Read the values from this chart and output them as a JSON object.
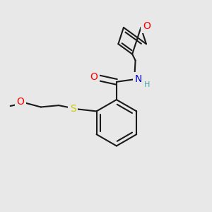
{
  "background_color": "#e8e8e8",
  "bond_color": "#1a1a1a",
  "atom_colors": {
    "O": "#ff0000",
    "N": "#0000bb",
    "S": "#cccc00",
    "H": "#44aaaa"
  },
  "figsize": [
    3.0,
    3.0
  ],
  "dpi": 100,
  "lw": 1.5
}
